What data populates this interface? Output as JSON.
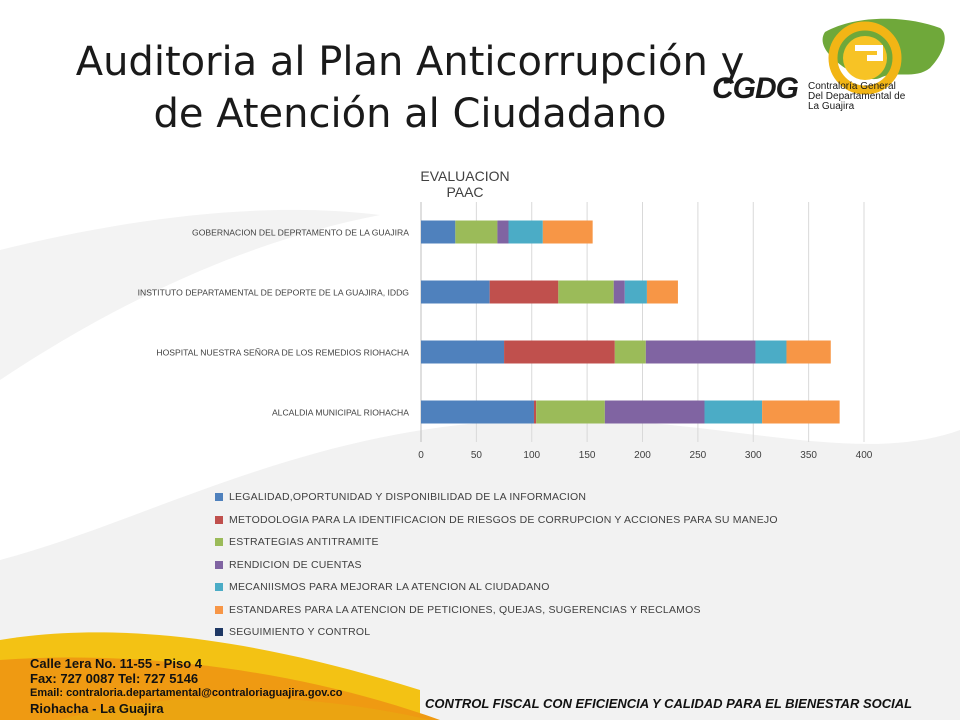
{
  "slide": {
    "title_line1": "Auditoria al Plan Anticorrupción y",
    "title_line2": "de Atención al Ciudadano"
  },
  "logo": {
    "abbr": "CGDG",
    "line1": "Contraloría General",
    "line2": "Del Departamental de",
    "line3": "La Guajira"
  },
  "footer": {
    "address_line1": "Calle 1era No. 11-55 - Piso 4",
    "address_line2": "Fax: 727 0087 Tel: 727 5146",
    "address_line3": "Email: contraloria.departamental@contraloriaguajira.gov.co",
    "address_line4": "Riohacha - La Guajira",
    "slogan": "CONTROL FISCAL CON EFICIENCIA Y CALIDAD PARA EL BIENESTAR SOCIAL"
  },
  "chart_data": {
    "type": "bar",
    "orientation": "horizontal",
    "stacked": true,
    "title": "EVALUACION PAAC",
    "categories": [
      "GOBERNACION  DEL DEPRTAMENTO DE LA GUAJIRA",
      "INSTITUTO DEPARTAMENTAL DE DEPORTE DE LA GUAJIRA, IDDG",
      "HOSPITAL NUESTRA SEÑORA DE LOS REMEDIOS RIOHACHA",
      "ALCALDIA MUNICIPAL RIOHACHA"
    ],
    "xlim": [
      0,
      400
    ],
    "xticks": [
      "0",
      "50",
      "100",
      "150",
      "200",
      "250",
      "300",
      "350",
      "400"
    ],
    "grid": true,
    "legend_position": "bottom",
    "series": [
      {
        "name": "LEGALIDAD,OPORTUNIDAD Y DISPONIBILIDAD DE LA INFORMACION",
        "color": "#4f81bd",
        "values": [
          31,
          62,
          75,
          102
        ]
      },
      {
        "name": "METODOLOGIA PARA LA IDENTIFICACION  DE RIESGOS DE CORRUPCION Y ACCIONES PARA SU MANEJO",
        "color": "#c0504d",
        "values": [
          0,
          62,
          100,
          2
        ]
      },
      {
        "name": "ESTRATEGIAS ANTITRAMITE",
        "color": "#9bbb59",
        "values": [
          38,
          50,
          28,
          62
        ]
      },
      {
        "name": "RENDICION DE CUENTAS",
        "color": "#8064a2",
        "values": [
          10,
          10,
          99,
          90
        ]
      },
      {
        "name": "MECANIISMOS PARA MEJORAR LA ATENCION AL CIUDADANO",
        "color": "#4bacc6",
        "values": [
          31,
          20,
          28,
          52
        ]
      },
      {
        "name": "ESTANDARES PARA LA ATENCION DE PETICIONES, QUEJAS, SUGERENCIAS Y RECLAMOS",
        "color": "#f79646",
        "values": [
          45,
          28,
          40,
          70
        ]
      },
      {
        "name": "SEGUIMIENTO Y CONTROL",
        "color": "#1f3864",
        "values": [
          0,
          0,
          0,
          0
        ]
      }
    ]
  }
}
